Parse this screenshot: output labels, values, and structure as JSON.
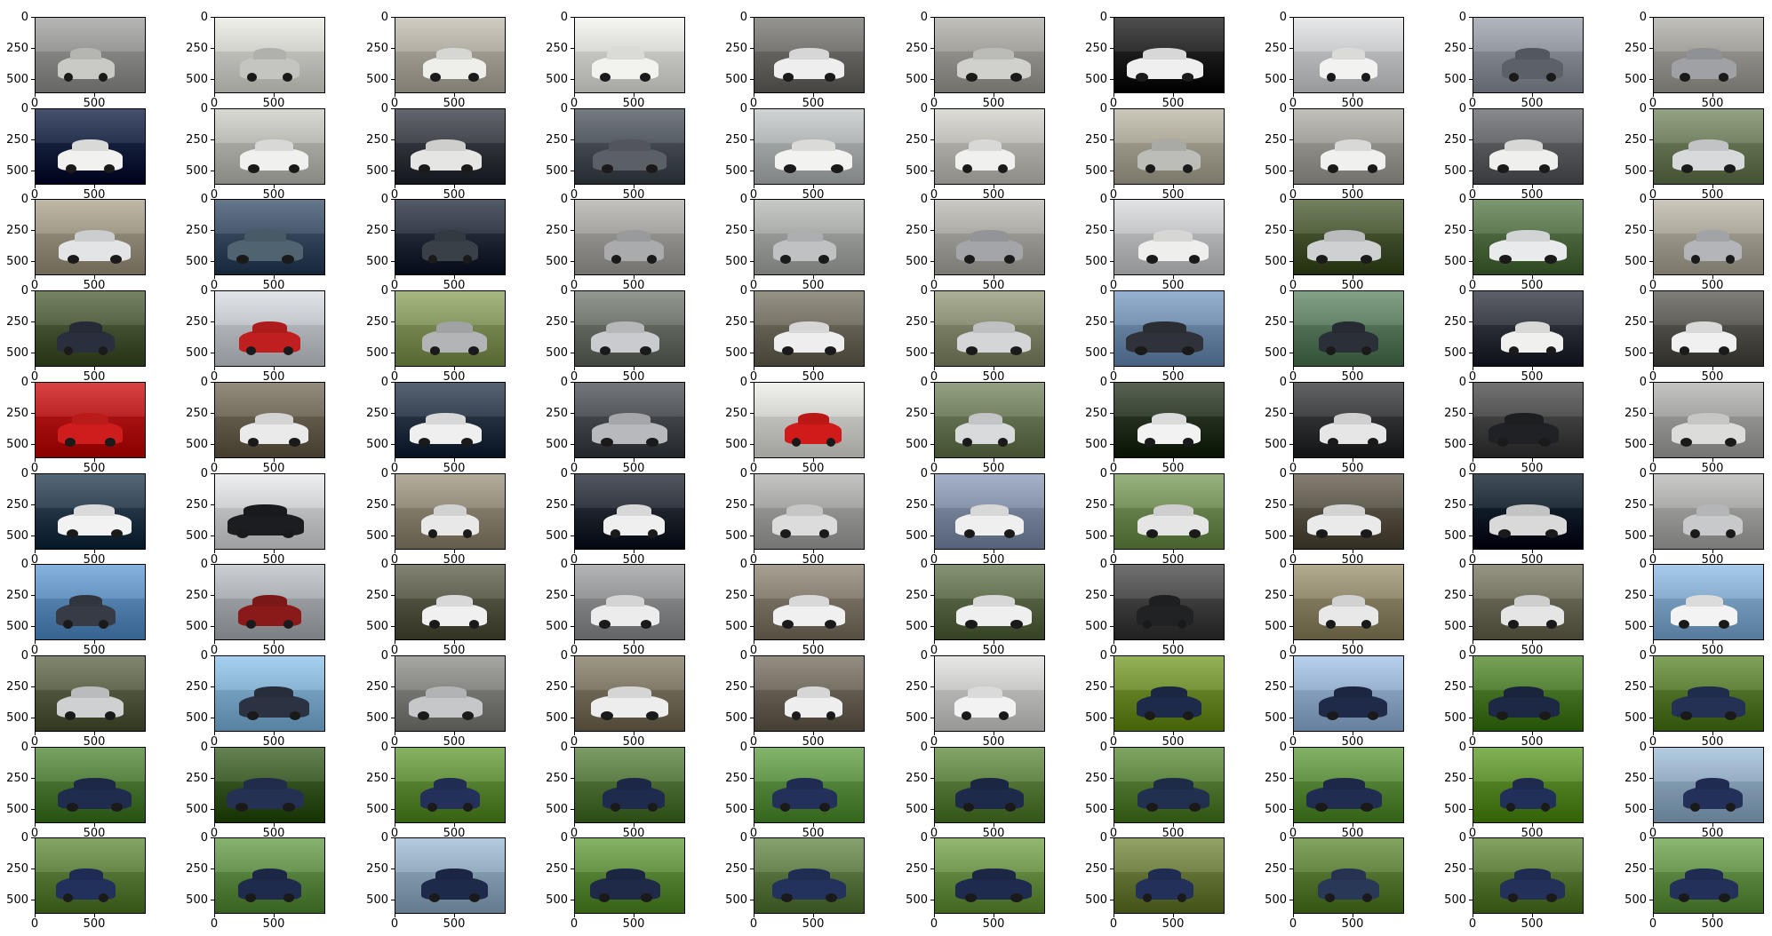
{
  "figure": {
    "rows": 10,
    "cols": 10,
    "y_tick_labels": [
      "0",
      "250",
      "500"
    ],
    "x_tick_labels": [
      "0",
      "500"
    ],
    "bg_color": "#ffffff"
  },
  "thumbnails": [
    [
      "#8e8f8c",
      "#c8c8c3",
      "#a8a49a",
      "#cfcfcb",
      "#6e6d6a",
      "#9a9893",
      "#262626",
      "#bfc1c3",
      "#8a8f95",
      "#9a9893"
    ],
    [
      "#1e2a45",
      "#b1b1ab",
      "#3b3e44",
      "#4c5359",
      "#a9acad",
      "#b5b4ae",
      "#a39f91",
      "#9a9893",
      "#606266",
      "#6b7a5a"
    ],
    [
      "#98907e",
      "#3e4e63",
      "#2c3340",
      "#9b9a96",
      "#a0a29f",
      "#a2a19c",
      "#b9bbbd",
      "#4a5837",
      "#557048",
      "#a39f93"
    ],
    [
      "#4d5a3b",
      "#b9bdc2",
      "#7f8f5a",
      "#6a6f68",
      "#6e6a5d",
      "#83876d",
      "#6e8aa8",
      "#5a7a60",
      "#353840",
      "#575650"
    ],
    [
      "#b21b1b",
      "#6c6556",
      "#2f3a4a",
      "#4b4e53",
      "#c9c9c6",
      "#6b7859",
      "#2f3a2b",
      "#3a3b3d",
      "#4a4a4a",
      "#9c9c9a"
    ],
    [
      "#2e3f4f",
      "#c5c7c8",
      "#8c8472",
      "#2a2f38",
      "#9c9c9a",
      "#7e8aa0",
      "#6f8a54",
      "#5b5649",
      "#1b2633",
      "#a1a19f"
    ],
    [
      "#5e8ab8",
      "#a3a7ab",
      "#5a5a4a",
      "#8a8c8e",
      "#7e776a",
      "#5d6a4b",
      "#484848",
      "#8a8367",
      "#6e6d5b",
      "#7fa3c4"
    ],
    [
      "#5a6048",
      "#7fa9c9",
      "#7e7e7a",
      "#77705f",
      "#6d665a",
      "#bfbfbd",
      "#6d8a2e",
      "#8fa8c6",
      "#4d7a2e",
      "#587a32"
    ],
    [
      "#4f7a3a",
      "#3d5a2b",
      "#5f8a3a",
      "#54743d",
      "#5c8d45",
      "#5b7d40",
      "#567d3a",
      "#5b8a3e",
      "#5b8a2e",
      "#8ba4b9"
    ],
    [
      "#5c7d3d",
      "#5f8a48",
      "#8ca3b6",
      "#5e8a3e",
      "#5f7a46",
      "#6a8f48",
      "#6b7b40",
      "#5c7d3a",
      "#5c7a3a",
      "#648f4a"
    ]
  ],
  "car_colors": [
    [
      "#c9c9c5",
      "#c4c4c0",
      "#eeeeea",
      "#f2f2ef",
      "#eeeeee",
      "#d0d0cc",
      "#efefef",
      "#f2f2f0",
      "#5c6168",
      "#9fa1a4"
    ],
    [
      "#f1f1ef",
      "#f0f0ee",
      "#e5e5e3",
      "#5b5f66",
      "#f2f2f0",
      "#f0f0ee",
      "#bcbdb9",
      "#f0f0ee",
      "#efefed",
      "#d8d9da"
    ],
    [
      "#e2e4e5",
      "#4f6470",
      "#3a4048",
      "#a9abad",
      "#bfc1c3",
      "#a3a5a8",
      "#eeeeec",
      "#cfd0d2",
      "#e9eaec",
      "#b3b5b8"
    ],
    [
      "#2a2f3d",
      "#c01f1f",
      "#b2b4b6",
      "#c9cbce",
      "#eeeeee",
      "#d3d5d7",
      "#2f3238",
      "#2b2f38",
      "#f0f0ee",
      "#f0f0f0"
    ],
    [
      "#cf1d1d",
      "#eaeaea",
      "#efefef",
      "#b7b9bc",
      "#d11a1a",
      "#d9dadb",
      "#f2f2f2",
      "#e6e6e6",
      "#1f2124",
      "#dcdcda"
    ],
    [
      "#f2f2f2",
      "#1c1d20",
      "#e8e8e8",
      "#efefef",
      "#dcdcdc",
      "#efefef",
      "#e5e5e5",
      "#eaeaea",
      "#d9d9d9",
      "#c8c9cb"
    ],
    [
      "#363b45",
      "#8a1a1a",
      "#f0f0f0",
      "#ececec",
      "#f0f0f0",
      "#efefef",
      "#202224",
      "#e8e8e8",
      "#e5e5e5",
      "#f3f3f3"
    ],
    [
      "#cfd0d1",
      "#2b3242",
      "#c6c7c8",
      "#ededed",
      "#eeeeee",
      "#f2f2f2",
      "#1e2a4a",
      "#1f2a48",
      "#1d2944",
      "#243154"
    ],
    [
      "#1f2c4e",
      "#243152",
      "#23315a",
      "#1f2b4d",
      "#22305a",
      "#1e2a4a",
      "#21304f",
      "#202d50",
      "#213058",
      "#22305a"
    ],
    [
      "#22305c",
      "#1e2b4c",
      "#1d2a4a",
      "#1e2a48",
      "#23325c",
      "#1f2b4e",
      "#22305a",
      "#2a3858",
      "#22305a",
      "#22305a"
    ]
  ]
}
